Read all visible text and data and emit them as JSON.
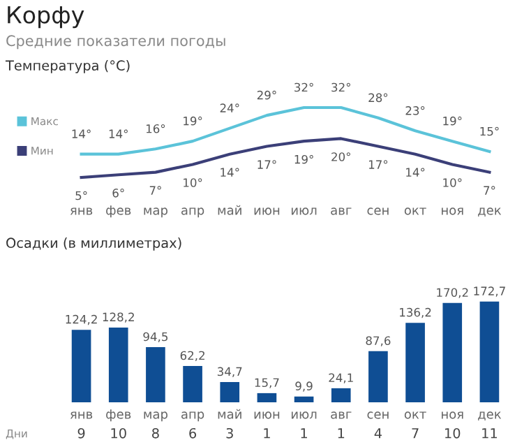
{
  "chart_data": [
    {
      "type": "line",
      "title": "Корфу",
      "subtitle": "Средние показатели погоды",
      "annotations": [
        "Температура (°C)"
      ],
      "categories": [
        "янв",
        "фев",
        "мар",
        "апр",
        "май",
        "июн",
        "июл",
        "авг",
        "сен",
        "окт",
        "ноя",
        "дек"
      ],
      "series": [
        {
          "name": "Макс",
          "color": "#5bc3d9",
          "values": [
            14,
            14,
            16,
            19,
            24,
            29,
            32,
            32,
            28,
            23,
            19,
            15
          ],
          "value_labels": [
            "14°",
            "14°",
            "16°",
            "19°",
            "24°",
            "29°",
            "32°",
            "32°",
            "28°",
            "23°",
            "19°",
            "15°"
          ]
        },
        {
          "name": "Мин",
          "color": "#3b3f78",
          "values": [
            5,
            6,
            7,
            10,
            14,
            17,
            19,
            20,
            17,
            14,
            10,
            7
          ],
          "value_labels": [
            "5°",
            "6°",
            "7°",
            "10°",
            "14°",
            "17°",
            "19°",
            "20°",
            "17°",
            "14°",
            "10°",
            "7°"
          ]
        }
      ],
      "legend": "left",
      "tick_labels": "x",
      "marker": "none",
      "line_style": "solid",
      "grid": false
    },
    {
      "type": "bar",
      "title": "Осадки (в миллиметрах)",
      "categories": [
        "янв",
        "фев",
        "мар",
        "апр",
        "май",
        "июн",
        "июл",
        "авг",
        "сен",
        "окт",
        "ноя",
        "дек"
      ],
      "values": [
        124.2,
        128.2,
        94.5,
        62.2,
        34.7,
        15.7,
        9.9,
        24.1,
        87.6,
        136.2,
        170.2,
        172.7
      ],
      "value_labels": [
        "124,2",
        "128,2",
        "94,5",
        "62,2",
        "34,7",
        "15,7",
        "9,9",
        "24,1",
        "87,6",
        "136,2",
        "170,2",
        "172,7"
      ],
      "color": "#0f4e94",
      "tick_labels": "x"
    },
    {
      "type": "other",
      "ylabel": "Дни",
      "categories": [
        null,
        null,
        null,
        null,
        null,
        null,
        null,
        null,
        null,
        null,
        null,
        null
      ],
      "values": [
        9,
        10,
        8,
        6,
        3,
        1,
        1,
        1,
        4,
        7,
        10,
        11
      ],
      "data_labels": true
    }
  ]
}
